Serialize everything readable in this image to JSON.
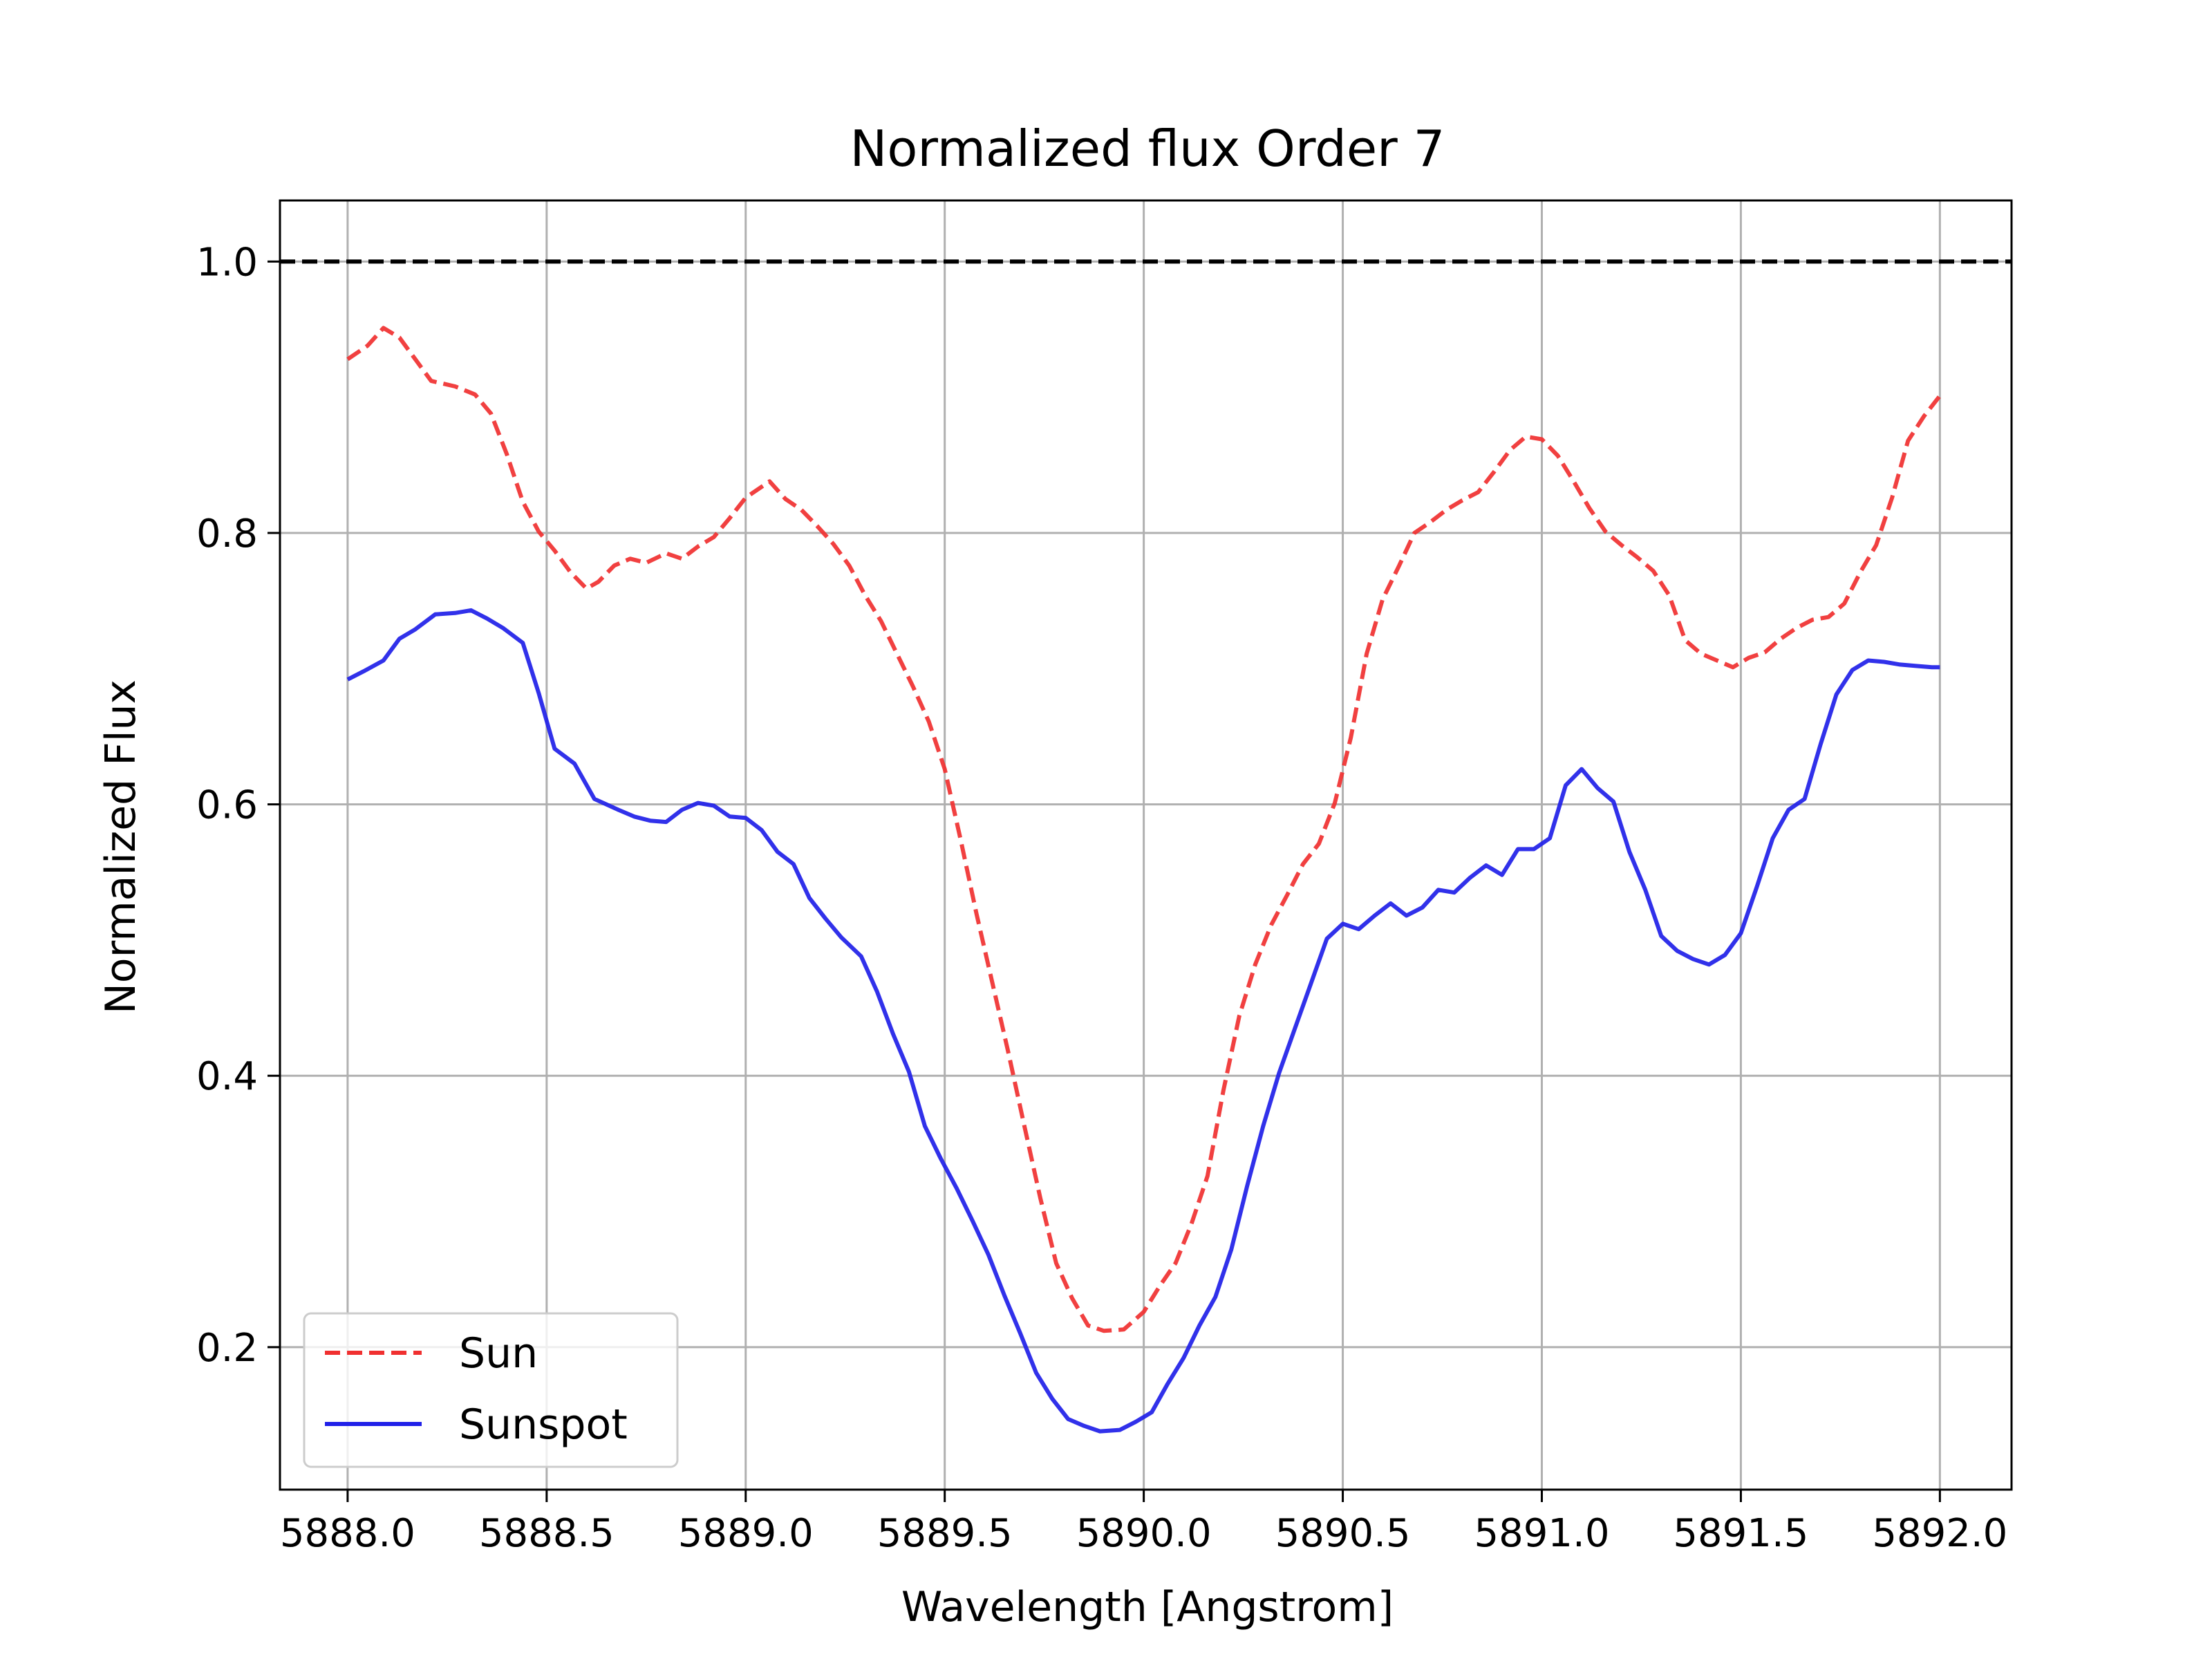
{
  "chart_data": {
    "type": "line",
    "title": "Normalized flux Order 7",
    "xlabel": "Wavelength [Angstrom]",
    "ylabel": "Normalized Flux",
    "xlim": [
      5887.83,
      5892.18
    ],
    "ylim": [
      0.095,
      1.045
    ],
    "x_ticks": [
      5888.0,
      5888.5,
      5889.0,
      5889.5,
      5890.0,
      5890.5,
      5891.0,
      5891.5,
      5892.0
    ],
    "x_tick_labels": [
      "5888.0",
      "5888.5",
      "5889.0",
      "5889.5",
      "5890.0",
      "5890.5",
      "5891.0",
      "5891.5",
      "5892.0"
    ],
    "y_ticks": [
      0.2,
      0.4,
      0.6,
      0.8,
      1.0
    ],
    "y_tick_labels": [
      "0.2",
      "0.4",
      "0.6",
      "0.8",
      "1.0"
    ],
    "grid": true,
    "legend_position": "lower-left",
    "reference_line": {
      "y": 1.0,
      "color": "#000000",
      "style": "dashed"
    },
    "series": [
      {
        "name": "Sun",
        "color": "#f03030",
        "style": "dashed",
        "x": [
          5888.0,
          5888.05,
          5888.09,
          5888.13,
          5888.17,
          5888.21,
          5888.27,
          5888.32,
          5888.36,
          5888.4,
          5888.44,
          5888.48,
          5888.52,
          5888.56,
          5888.6,
          5888.63,
          5888.67,
          5888.71,
          5888.75,
          5888.8,
          5888.84,
          5888.88,
          5888.92,
          5888.96,
          5889.0,
          5889.06,
          5889.1,
          5889.14,
          5889.18,
          5889.22,
          5889.26,
          5889.3,
          5889.34,
          5889.38,
          5889.42,
          5889.46,
          5889.5,
          5889.54,
          5889.58,
          5889.62,
          5889.66,
          5889.7,
          5889.74,
          5889.78,
          5889.82,
          5889.86,
          5889.9,
          5889.95,
          5890.0,
          5890.04,
          5890.08,
          5890.12,
          5890.16,
          5890.2,
          5890.24,
          5890.28,
          5890.32,
          5890.36,
          5890.4,
          5890.44,
          5890.48,
          5890.52,
          5890.56,
          5890.6,
          5890.64,
          5890.68,
          5890.72,
          5890.76,
          5890.8,
          5890.84,
          5890.88,
          5890.92,
          5890.96,
          5891.0,
          5891.04,
          5891.08,
          5891.12,
          5891.16,
          5891.2,
          5891.24,
          5891.28,
          5891.32,
          5891.36,
          5891.4,
          5891.44,
          5891.48,
          5891.52,
          5891.56,
          5891.6,
          5891.64,
          5891.68,
          5891.72,
          5891.76,
          5891.8,
          5891.84,
          5891.88,
          5891.92,
          5891.96,
          5892.0
        ],
        "y": [
          0.928,
          0.938,
          0.951,
          0.944,
          0.928,
          0.912,
          0.908,
          0.902,
          0.888,
          0.858,
          0.823,
          0.801,
          0.787,
          0.771,
          0.759,
          0.764,
          0.776,
          0.781,
          0.778,
          0.785,
          0.781,
          0.79,
          0.797,
          0.811,
          0.826,
          0.838,
          0.825,
          0.817,
          0.805,
          0.792,
          0.776,
          0.754,
          0.735,
          0.711,
          0.687,
          0.661,
          0.626,
          0.574,
          0.519,
          0.468,
          0.417,
          0.363,
          0.31,
          0.262,
          0.236,
          0.216,
          0.212,
          0.213,
          0.226,
          0.245,
          0.262,
          0.291,
          0.326,
          0.389,
          0.444,
          0.482,
          0.511,
          0.533,
          0.556,
          0.571,
          0.601,
          0.649,
          0.711,
          0.751,
          0.775,
          0.8,
          0.808,
          0.817,
          0.824,
          0.83,
          0.845,
          0.861,
          0.871,
          0.869,
          0.857,
          0.838,
          0.818,
          0.801,
          0.791,
          0.782,
          0.772,
          0.754,
          0.721,
          0.711,
          0.706,
          0.701,
          0.708,
          0.712,
          0.722,
          0.73,
          0.736,
          0.738,
          0.748,
          0.771,
          0.791,
          0.826,
          0.868,
          0.886,
          0.901
        ]
      },
      {
        "name": "Sunspot",
        "color": "#2020e8",
        "style": "solid",
        "x": [
          5888.0,
          5888.04,
          5888.09,
          5888.13,
          5888.17,
          5888.22,
          5888.27,
          5888.31,
          5888.35,
          5888.39,
          5888.44,
          5888.48,
          5888.52,
          5888.57,
          5888.62,
          5888.68,
          5888.72,
          5888.76,
          5888.8,
          5888.84,
          5888.88,
          5888.92,
          5888.96,
          5889.0,
          5889.04,
          5889.08,
          5889.12,
          5889.16,
          5889.2,
          5889.24,
          5889.29,
          5889.33,
          5889.37,
          5889.41,
          5889.45,
          5889.49,
          5889.53,
          5889.57,
          5889.61,
          5889.65,
          5889.69,
          5889.73,
          5889.77,
          5889.81,
          5889.85,
          5889.89,
          5889.94,
          5889.98,
          5890.02,
          5890.06,
          5890.1,
          5890.14,
          5890.18,
          5890.22,
          5890.26,
          5890.3,
          5890.34,
          5890.38,
          5890.42,
          5890.46,
          5890.5,
          5890.54,
          5890.58,
          5890.62,
          5890.66,
          5890.7,
          5890.74,
          5890.78,
          5890.82,
          5890.86,
          5890.9,
          5890.94,
          5890.98,
          5891.02,
          5891.06,
          5891.1,
          5891.14,
          5891.18,
          5891.22,
          5891.26,
          5891.3,
          5891.34,
          5891.38,
          5891.42,
          5891.46,
          5891.5,
          5891.54,
          5891.58,
          5891.62,
          5891.66,
          5891.7,
          5891.74,
          5891.78,
          5891.82,
          5891.86,
          5891.9,
          5891.94,
          5891.98,
          5892.0
        ],
        "y": [
          0.692,
          0.698,
          0.706,
          0.722,
          0.729,
          0.74,
          0.741,
          0.743,
          0.737,
          0.73,
          0.719,
          0.682,
          0.641,
          0.63,
          0.604,
          0.596,
          0.591,
          0.588,
          0.587,
          0.596,
          0.601,
          0.599,
          0.591,
          0.59,
          0.581,
          0.565,
          0.556,
          0.531,
          0.516,
          0.502,
          0.488,
          0.462,
          0.431,
          0.403,
          0.363,
          0.339,
          0.317,
          0.293,
          0.268,
          0.238,
          0.21,
          0.181,
          0.162,
          0.147,
          0.142,
          0.138,
          0.139,
          0.145,
          0.152,
          0.173,
          0.192,
          0.216,
          0.237,
          0.272,
          0.319,
          0.363,
          0.402,
          0.435,
          0.468,
          0.501,
          0.512,
          0.508,
          0.518,
          0.527,
          0.518,
          0.524,
          0.537,
          0.535,
          0.546,
          0.555,
          0.548,
          0.567,
          0.567,
          0.575,
          0.614,
          0.626,
          0.612,
          0.602,
          0.565,
          0.537,
          0.503,
          0.492,
          0.486,
          0.482,
          0.489,
          0.505,
          0.539,
          0.575,
          0.596,
          0.604,
          0.644,
          0.681,
          0.699,
          0.706,
          0.705,
          0.703,
          0.702,
          0.701,
          0.701
        ]
      }
    ]
  }
}
